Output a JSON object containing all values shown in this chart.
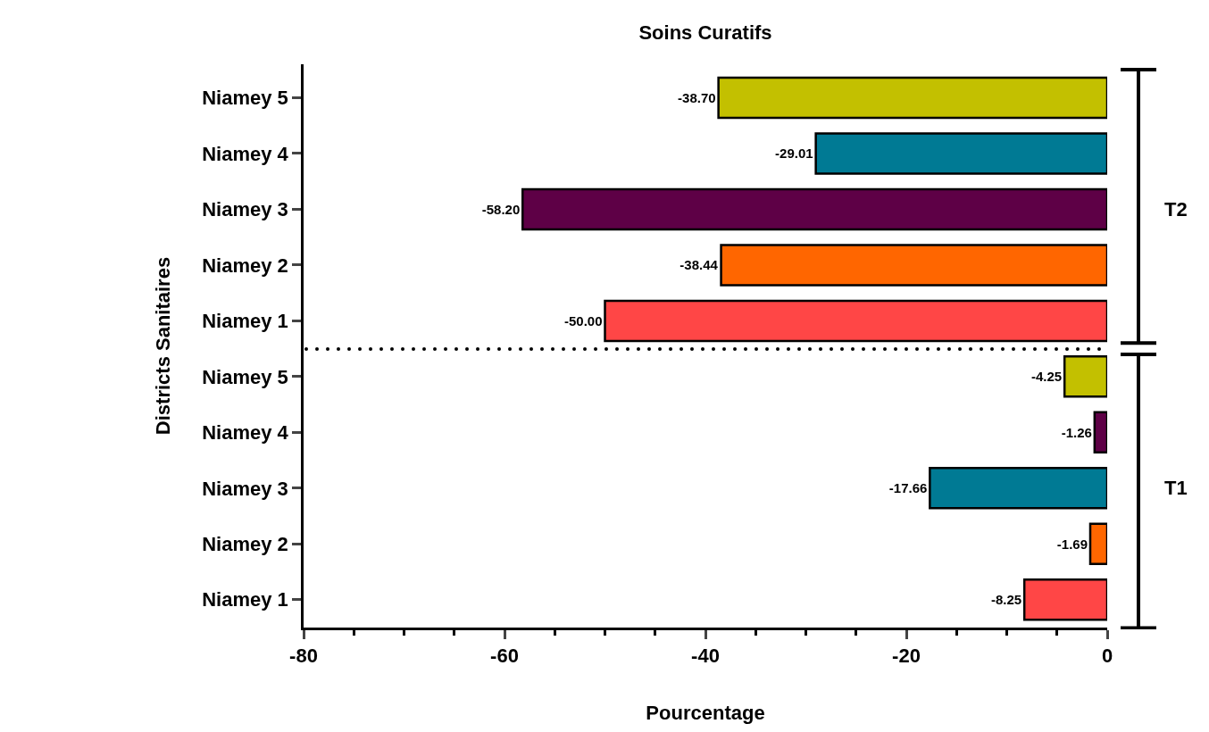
{
  "chart_data": {
    "type": "bar",
    "orientation": "horizontal",
    "title": "Soins Curatifs",
    "xlabel": "Pourcentage",
    "ylabel": "Districts Sanitaires",
    "categories": [
      "Niamey 5",
      "Niamey 4",
      "Niamey 3",
      "Niamey 2",
      "Niamey 1",
      "Niamey 5",
      "Niamey 4",
      "Niamey 3",
      "Niamey 2",
      "Niamey 1"
    ],
    "values": [
      -38.7,
      -29.01,
      -58.2,
      -38.44,
      -50.0,
      -4.25,
      -1.26,
      -17.66,
      -1.69,
      -8.25
    ],
    "value_labels": [
      "-38.70",
      "-29.01",
      "-58.20",
      "-38.44",
      "-50.00",
      "-4.25",
      "-1.26",
      "-17.66",
      "-1.69",
      "-8.25"
    ],
    "colors": [
      "#c3c000",
      "#007a94",
      "#5e0046",
      "#ff6600",
      "#ff4646",
      "#c3c000",
      "#5e0046",
      "#007a94",
      "#ff6600",
      "#ff4646"
    ],
    "xlim": [
      -80,
      0
    ],
    "xticks": [
      -80,
      -60,
      -40,
      -20,
      0
    ],
    "annotations": [
      "T2",
      "T1"
    ],
    "grid": false,
    "legend": false
  }
}
